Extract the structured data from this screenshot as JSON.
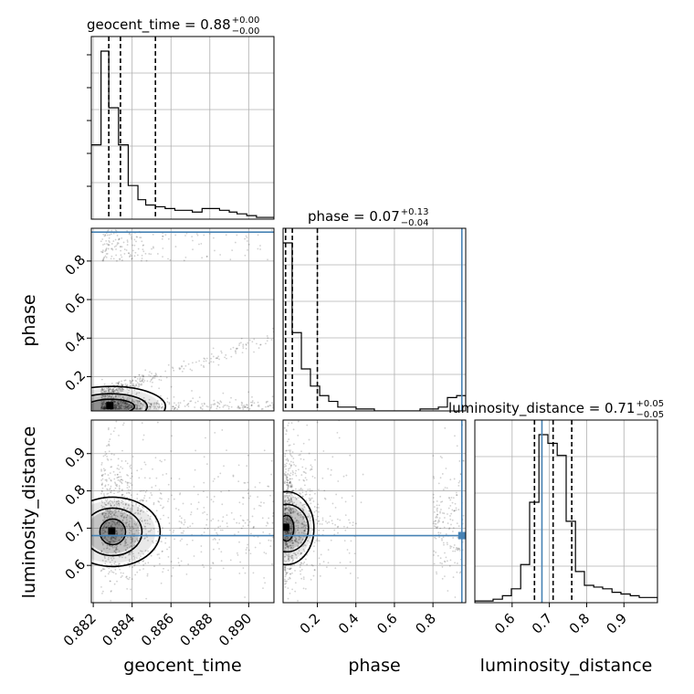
{
  "chart_data": {
    "type": "corner",
    "parameters": [
      "geocent_time",
      "phase",
      "luminosity_distance"
    ],
    "ranges": {
      "geocent_time": [
        0.8819,
        0.8913
      ],
      "phase": [
        0.022,
        0.97
      ],
      "luminosity_distance": [
        0.5,
        0.99
      ]
    },
    "axis_labels": {
      "x": [
        "geocent_time",
        "phase",
        "luminosity_distance"
      ],
      "y": [
        "phase",
        "luminosity_distance"
      ]
    },
    "titles": [
      {
        "param": "geocent_time",
        "main": "geocent_time = 0.88",
        "plus": "+0.00",
        "minus": "−0.00"
      },
      {
        "param": "phase",
        "main": "phase = 0.07",
        "plus": "+0.13",
        "minus": "−0.04"
      },
      {
        "param": "luminosity_distance",
        "main": "luminosity_distance = 0.71",
        "plus": "+0.05",
        "minus": "−0.05"
      }
    ],
    "ticks": {
      "geocent_time": {
        "values": [
          0.882,
          0.884,
          0.886,
          0.888,
          0.89
        ],
        "labels": [
          "0.882",
          "0.884",
          "0.886",
          "0.888",
          "0.890"
        ]
      },
      "phase_x": {
        "values": [
          0.2,
          0.4,
          0.6,
          0.8
        ],
        "labels": [
          "0.2",
          "0.4",
          "0.6",
          "0.8"
        ]
      },
      "phase_y": {
        "values": [
          0.2,
          0.4,
          0.6,
          0.8
        ],
        "labels": [
          "0.2",
          "0.4",
          "0.6",
          "0.8"
        ]
      },
      "luminosity_distance": {
        "values": [
          0.6,
          0.7,
          0.8,
          0.9
        ],
        "labels": [
          "0.6",
          "0.7",
          "0.8",
          "0.9"
        ]
      }
    },
    "quantiles": {
      "geocent_time": [
        0.8828,
        0.8834,
        0.8852
      ],
      "phase": [
        0.035,
        0.07,
        0.2
      ],
      "luminosity_distance": [
        0.66,
        0.71,
        0.76
      ]
    },
    "truths": {
      "geocent_time": null,
      "phase": 0.95,
      "luminosity_distance": 0.68
    },
    "histograms": {
      "geocent_time": {
        "edges": [
          0.8819,
          0.8824,
          0.8828,
          0.8833,
          0.8838,
          0.8843,
          0.8847,
          0.8852,
          0.8857,
          0.8862,
          0.8866,
          0.8871,
          0.8876,
          0.888,
          0.8885,
          0.889,
          0.8894,
          0.8899,
          0.8904,
          0.8909,
          0.8913
        ],
        "counts": [
          0.42,
          0.95,
          0.63,
          0.42,
          0.19,
          0.11,
          0.08,
          0.07,
          0.06,
          0.05,
          0.05,
          0.04,
          0.06,
          0.06,
          0.05,
          0.04,
          0.03,
          0.02,
          0.01,
          0.01
        ]
      },
      "phase": {
        "edges": [
          0.022,
          0.069,
          0.117,
          0.164,
          0.212,
          0.259,
          0.306,
          0.354,
          0.401,
          0.449,
          0.496,
          0.543,
          0.591,
          0.638,
          0.686,
          0.733,
          0.78,
          0.828,
          0.875,
          0.923,
          0.97
        ],
        "counts": [
          0.88,
          0.41,
          0.22,
          0.13,
          0.08,
          0.05,
          0.02,
          0.02,
          0.01,
          0.01,
          0.0,
          0.0,
          0.0,
          0.0,
          0.0,
          0.01,
          0.01,
          0.02,
          0.07,
          0.08
        ]
      },
      "luminosity_distance": {
        "edges": [
          0.5,
          0.525,
          0.549,
          0.574,
          0.598,
          0.623,
          0.647,
          0.672,
          0.696,
          0.721,
          0.745,
          0.77,
          0.794,
          0.819,
          0.843,
          0.868,
          0.892,
          0.917,
          0.941,
          0.966,
          0.99
        ],
        "counts": [
          0.01,
          0.01,
          0.02,
          0.04,
          0.08,
          0.22,
          0.58,
          0.97,
          0.92,
          0.85,
          0.47,
          0.18,
          0.1,
          0.09,
          0.08,
          0.06,
          0.05,
          0.04,
          0.03,
          0.03
        ]
      }
    },
    "contour_levels": 3,
    "colors": {
      "line": "#000000",
      "truth": "#4682b4",
      "grid": "#b0b0b0",
      "points": "#000000"
    }
  }
}
